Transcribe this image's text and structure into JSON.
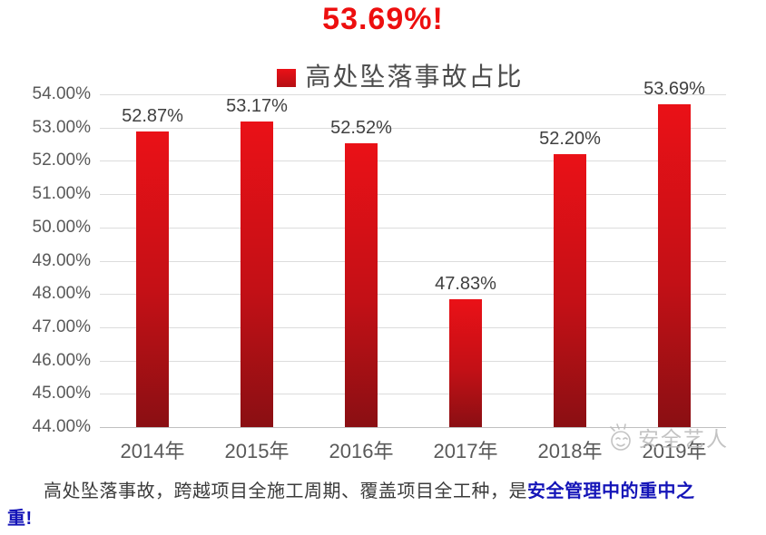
{
  "page": {
    "title": "53.69%!"
  },
  "watermark": {
    "text": "安全艺人"
  },
  "caption": {
    "line1_normal": "高处坠落事故，跨越项目全施工周期、覆盖项目全工种，是",
    "line1_highlight": "安全管理中的重中之",
    "line2_highlight": "重!"
  },
  "colors": {
    "title_red": "#ed0f0f",
    "bar_top": "#ea1117",
    "bar_bottom": "#8a0f13",
    "grid": "#dcdcdc",
    "axis_line": "#c0c0c0",
    "tick_label": "#595959",
    "data_label": "#404040",
    "caption_text": "#3b3b3b",
    "caption_highlight": "#1515b8",
    "watermark": "#b9b9b9"
  },
  "chart_data": {
    "type": "bar",
    "title": "53.69%!",
    "legend": "高处坠落事故占比",
    "legend_position": "top",
    "categories": [
      "2014年",
      "2015年",
      "2016年",
      "2017年",
      "2018年",
      "2019年"
    ],
    "values": [
      52.87,
      53.17,
      52.52,
      47.83,
      52.2,
      53.69
    ],
    "data_labels": [
      "52.87%",
      "53.17%",
      "52.52%",
      "47.83%",
      "52.20%",
      "53.69%"
    ],
    "ylim": [
      44,
      54
    ],
    "ytick_step": 1,
    "ytick_labels": [
      "44.00%",
      "45.00%",
      "46.00%",
      "47.00%",
      "48.00%",
      "49.00%",
      "50.00%",
      "51.00%",
      "52.00%",
      "53.00%",
      "54.00%"
    ],
    "grid": true
  }
}
